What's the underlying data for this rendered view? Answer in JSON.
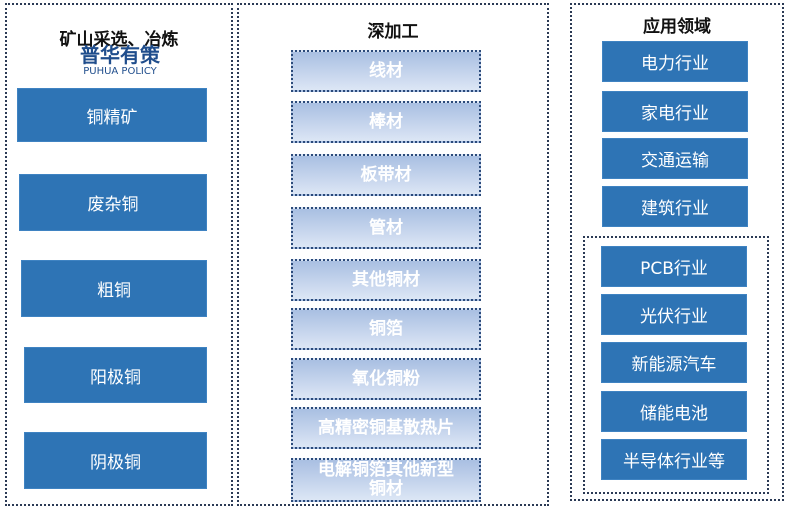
{
  "mining": {
    "title": "矿山采选、冶炼",
    "items": [
      "铜精矿",
      "废杂铜",
      "粗铜",
      "阳极铜",
      "阴极铜"
    ]
  },
  "processing": {
    "title": "深加工",
    "items": [
      "线材",
      "棒材",
      "板带材",
      "管材",
      "其他铜材",
      "铜箔",
      "氧化铜粉",
      "高精密铜基散热片",
      "电解铜箔其他新型铜材"
    ]
  },
  "application": {
    "title": "应用领域",
    "items": [
      "电力行业",
      "家电行业",
      "交通运输",
      "建筑行业"
    ],
    "emerging": [
      "PCB行业",
      "光伏行业",
      "新能源汽车",
      "储能电池",
      "半导体行业等"
    ]
  },
  "watermark": {
    "cn": "普华有策",
    "en": "PUHUA POLICY"
  },
  "colors": {
    "box": "#2e74b5",
    "border": "#2b3a55"
  }
}
